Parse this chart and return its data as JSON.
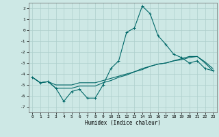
{
  "xlabel": "Humidex (Indice chaleur)",
  "xlim": [
    -0.5,
    23.5
  ],
  "ylim": [
    -7.5,
    2.5
  ],
  "yticks": [
    2,
    1,
    0,
    -1,
    -2,
    -3,
    -4,
    -5,
    -6,
    -7
  ],
  "xticks": [
    0,
    1,
    2,
    3,
    4,
    5,
    6,
    7,
    8,
    9,
    10,
    11,
    12,
    13,
    14,
    15,
    16,
    17,
    18,
    19,
    20,
    21,
    22,
    23
  ],
  "background_color": "#cde8e5",
  "grid_color": "#aecfcc",
  "line_color": "#006868",
  "line1": [
    -4.3,
    -4.8,
    -4.7,
    -5.3,
    -6.5,
    -5.6,
    -5.4,
    -6.2,
    -6.2,
    -5.0,
    -3.5,
    -2.8,
    -0.2,
    0.2,
    2.2,
    1.5,
    -0.5,
    -1.3,
    -2.2,
    -2.5,
    -3.0,
    -2.8,
    -3.5,
    -3.7
  ],
  "line2": [
    -4.3,
    -4.8,
    -4.7,
    -5.0,
    -5.0,
    -5.0,
    -4.8,
    -4.8,
    -4.8,
    -4.6,
    -4.4,
    -4.2,
    -4.0,
    -3.8,
    -3.5,
    -3.3,
    -3.1,
    -3.0,
    -2.8,
    -2.6,
    -2.4,
    -2.4,
    -2.9,
    -3.5
  ],
  "line3": [
    -4.3,
    -4.8,
    -4.7,
    -5.3,
    -5.3,
    -5.3,
    -5.1,
    -5.1,
    -5.1,
    -4.8,
    -4.6,
    -4.3,
    -4.1,
    -3.8,
    -3.6,
    -3.3,
    -3.1,
    -3.0,
    -2.8,
    -2.7,
    -2.5,
    -2.4,
    -3.0,
    -3.7
  ]
}
